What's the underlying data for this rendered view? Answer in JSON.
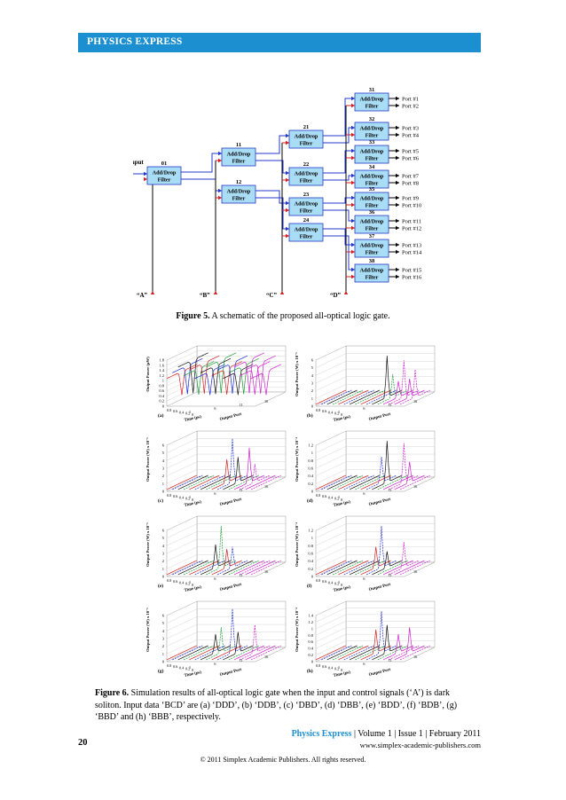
{
  "header": {
    "title": "PHYSICS EXPRESS"
  },
  "figure5": {
    "input_label": "Input",
    "filter_line1": "Add/Drop",
    "filter_line2": "Filter",
    "filter_numbers": {
      "f01": "01",
      "f11": "11",
      "f12": "12",
      "f21": "21",
      "f22": "22",
      "f23": "23",
      "f24": "24",
      "f31": "31",
      "f32": "32",
      "f33": "33",
      "f34": "34",
      "f35": "35",
      "f36": "36",
      "f37": "37",
      "f38": "38"
    },
    "control_labels": [
      "“A”",
      "“B”",
      "“C”",
      "“D”"
    ],
    "ports": [
      "Port #1",
      "Port #2",
      "Port #3",
      "Port #4",
      "Port #5",
      "Port #6",
      "Port #7",
      "Port #8",
      "Port #9",
      "Port #10",
      "Port #11",
      "Port #12",
      "Port #13",
      "Port #14",
      "Port #15",
      "Port #16"
    ],
    "caption_label": "Figure 5.",
    "caption_text": " A schematic of the proposed all-optical logic gate."
  },
  "figure6": {
    "panels": [
      {
        "label": "(a)",
        "ylabel": "Output Power (μW)",
        "yticks": [
          "0",
          "0.2",
          "0.4",
          "0.6",
          "0.8",
          "1",
          "1.2",
          "1.4",
          "1.6",
          "1.8"
        ],
        "xticks": [
          "0.8",
          "0.6",
          "0.4",
          "0.2",
          "0"
        ]
      },
      {
        "label": "(b)",
        "ylabel": "Output Power (W) x 10⁻⁵",
        "yticks": [
          "0",
          "1",
          "2",
          "3",
          "4",
          "5",
          "6"
        ],
        "xticks": [
          "0.8",
          "0.6",
          "0.4",
          "0.2",
          "0"
        ]
      },
      {
        "label": "(c)",
        "ylabel": "Output Power (W) x 10⁻⁵",
        "yticks": [
          "0",
          "1",
          "2",
          "3",
          "4",
          "5",
          "6"
        ],
        "xticks": [
          "0.8",
          "0.6",
          "0.4",
          "0.2",
          "0"
        ]
      },
      {
        "label": "(d)",
        "ylabel": "Output Power (W) x 10⁻⁴",
        "yticks": [
          "0",
          "0.2",
          "0.4",
          "0.6",
          "0.8",
          "1",
          "1.2"
        ],
        "xticks": [
          "0.8",
          "0.6",
          "0.4",
          "0.2",
          "0"
        ]
      },
      {
        "label": "(e)",
        "ylabel": "Output Power (W) x 10⁻⁵",
        "yticks": [
          "0",
          "1",
          "2",
          "3",
          "4",
          "5",
          "6"
        ],
        "xticks": [
          "0.8",
          "0.6",
          "0.4",
          "0.2",
          "0"
        ]
      },
      {
        "label": "(f)",
        "ylabel": "Output Power (W) x 10⁻⁴",
        "yticks": [
          "0",
          "0.2",
          "0.4",
          "0.6",
          "0.8",
          "1",
          "1.2"
        ],
        "xticks": [
          "0.8",
          "0.6",
          "0.4",
          "0.2",
          "0"
        ]
      },
      {
        "label": "(g)",
        "ylabel": "Output Power (W) x 10⁻⁵",
        "yticks": [
          "0",
          "1",
          "2",
          "3",
          "4",
          "5",
          "6"
        ],
        "xticks": [
          "0.8",
          "0.6",
          "0.4",
          "0.2",
          "0"
        ]
      },
      {
        "label": "(h)",
        "ylabel": "Output Power (W) x 10⁻⁴",
        "yticks": [
          "0",
          "0.2",
          "0.4",
          "0.6",
          "0.8",
          "1",
          "1.2",
          "1.4"
        ],
        "xticks": [
          "0.8",
          "0.6",
          "0.4",
          "0.2",
          "0"
        ]
      }
    ],
    "xaxis_title": "Time (ps)",
    "port_axis_title": "Output Port",
    "port_ticks": [
      "1",
      "6",
      "11",
      "16"
    ],
    "caption_label": "Figure 6.",
    "caption_text": " Simulation results of all-optical logic gate when the input and control signals (‘A’) is dark soliton. Input data ‘BCD’ are (a) ‘DDD’, (b) ‘DDB’, (c) ‘DBD’, (d) ‘DBB’, (e) ‘BDD’, (f) ‘BDB’, (g) ‘BBD’ and (h) ‘BBB’, respectively."
  },
  "footer": {
    "journal": "Physics Express",
    "issue": " | Volume 1 | Issue 1 | February 2011",
    "url": "www.simplex-academic-publishers.com",
    "page_number": "20",
    "copyright": "© 2011 Simplex Academic Publishers. All rights reserved."
  },
  "colors": {
    "accent": "#1b8fd0",
    "filter_fill": "#a9ddf5",
    "signal_blue": "#2438c8",
    "signal_red": "#d42020"
  }
}
